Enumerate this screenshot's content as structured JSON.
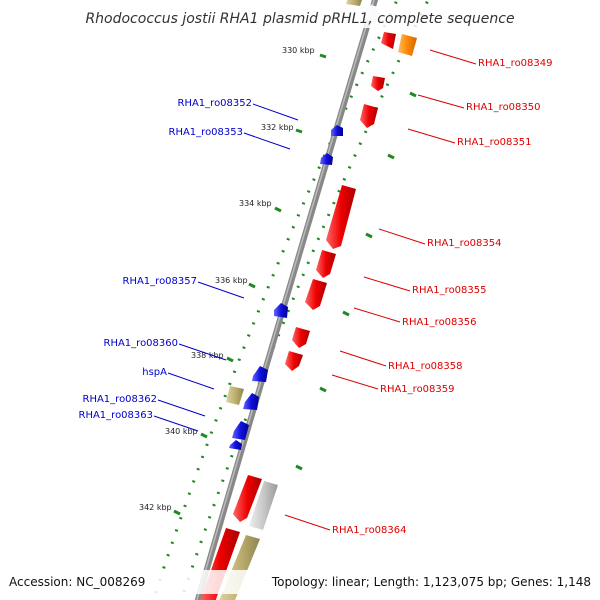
{
  "title": "Rhodococcus jostii RHA1 plasmid pRHL1, complete sequence",
  "footer": {
    "accession": "Accession: NC_008269",
    "summary": "Topology: linear; Length: 1,123,075 bp; Genes: 1,148"
  },
  "colors": {
    "forward_gene": "#ee0000",
    "reverse_gene": "#0000cc",
    "orange_gene": "#ff8800",
    "tan_gene": "#bfb070",
    "grey_gene": "#c0c0c0",
    "ticks": "#228822",
    "backbone": "#888888"
  },
  "ticks": [
    {
      "label": "330 kbp"
    },
    {
      "label": "332 kbp"
    },
    {
      "label": "334 kbp"
    },
    {
      "label": "336 kbp"
    },
    {
      "label": "338 kbp"
    },
    {
      "label": "340 kbp"
    },
    {
      "label": "342 kbp"
    }
  ],
  "genes_left": [
    {
      "label": "RHA1_ro08352"
    },
    {
      "label": "RHA1_ro08353"
    },
    {
      "label": "RHA1_ro08357"
    },
    {
      "label": "RHA1_ro08360"
    },
    {
      "label": "hspA"
    },
    {
      "label": "RHA1_ro08362"
    },
    {
      "label": "RHA1_ro08363"
    }
  ],
  "genes_right": [
    {
      "label": "RHA1_ro08349"
    },
    {
      "label": "RHA1_ro08350"
    },
    {
      "label": "RHA1_ro08351"
    },
    {
      "label": "RHA1_ro08354"
    },
    {
      "label": "RHA1_ro08355"
    },
    {
      "label": "RHA1_ro08356"
    },
    {
      "label": "RHA1_ro08358"
    },
    {
      "label": "RHA1_ro08359"
    },
    {
      "label": "RHA1_ro08364"
    }
  ]
}
